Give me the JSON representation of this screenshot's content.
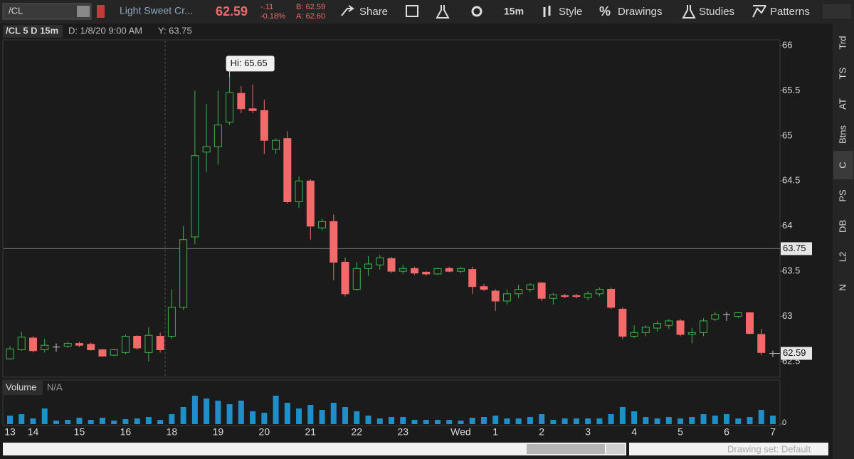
{
  "toolbar": {
    "symbol": "/CL",
    "description": "Light Sweet Cr...",
    "last": "62.59",
    "change": "-.11",
    "change_pct": "-0.18%",
    "bid": "B: 62.59",
    "ask": "A: 62.60",
    "share": "Share",
    "interval": "15m",
    "style": "Style",
    "drawings": "Drawings",
    "studies": "Studies",
    "patterns": "Patterns"
  },
  "chart_data": {
    "type": "candlestick",
    "title": "/CL 5 D 15m",
    "cursor_date": "D: 1/8/20 9:00 AM",
    "cursor_value_label": "Y: 63.75",
    "categories": [
      "13",
      null,
      "14",
      null,
      null,
      null,
      "15",
      null,
      null,
      null,
      "16",
      null,
      null,
      null,
      "18",
      null,
      null,
      null,
      "19",
      null,
      null,
      null,
      "20",
      null,
      null,
      null,
      "21",
      null,
      null,
      null,
      "22",
      null,
      null,
      null,
      "23",
      null,
      null,
      null,
      null,
      "Wed",
      null,
      null,
      "1",
      null,
      null,
      null,
      "2",
      null,
      null,
      null,
      "3",
      null,
      null,
      null,
      "4",
      null,
      null,
      null,
      "5",
      null,
      null,
      null,
      "6",
      null,
      null,
      null,
      "7"
    ],
    "open": [
      62.53,
      62.63,
      62.76,
      62.63,
      62.66,
      62.67,
      62.7,
      62.69,
      62.63,
      62.57,
      62.6,
      62.78,
      62.6,
      62.78,
      62.78,
      63.1,
      63.88,
      64.82,
      64.88,
      65.15,
      65.47,
      65.3,
      65.28,
      64.85,
      64.97,
      64.27,
      64.5,
      63.98,
      64.05,
      63.6,
      63.3,
      63.53,
      63.57,
      63.64,
      63.5,
      63.53,
      63.49,
      63.47,
      63.53,
      63.5,
      63.52,
      63.33,
      63.28,
      63.17,
      63.25,
      63.3,
      63.37,
      63.2,
      63.23,
      63.23,
      63.21,
      63.25,
      63.3,
      63.08,
      62.78,
      62.82,
      62.87,
      62.9,
      62.95,
      62.8,
      62.82,
      62.97,
      63.02,
      63.0,
      63.04,
      62.8,
      62.59
    ],
    "high": [
      62.67,
      62.83,
      62.78,
      62.75,
      62.7,
      62.72,
      62.72,
      62.71,
      62.64,
      62.64,
      62.8,
      62.79,
      62.88,
      62.82,
      63.3,
      64.0,
      65.5,
      65.35,
      65.5,
      65.65,
      65.55,
      65.57,
      65.4,
      64.97,
      65.05,
      64.55,
      64.52,
      64.08,
      64.13,
      63.65,
      63.6,
      63.67,
      63.68,
      63.66,
      63.57,
      63.55,
      63.5,
      63.54,
      63.55,
      63.55,
      63.55,
      63.36,
      63.3,
      63.3,
      63.35,
      63.37,
      63.38,
      63.26,
      63.25,
      63.25,
      63.28,
      63.32,
      63.32,
      63.1,
      62.9,
      62.9,
      62.95,
      62.97,
      62.97,
      62.87,
      62.98,
      63.05,
      63.05,
      63.05,
      63.05,
      62.86,
      62.62
    ],
    "low": [
      62.52,
      62.62,
      62.6,
      62.6,
      62.61,
      62.65,
      62.66,
      62.62,
      62.55,
      62.56,
      62.58,
      62.63,
      62.5,
      62.6,
      62.75,
      63.07,
      63.8,
      64.6,
      64.68,
      65.12,
      65.25,
      65.25,
      64.8,
      64.8,
      64.25,
      64.2,
      63.85,
      63.95,
      63.4,
      63.22,
      63.28,
      63.45,
      63.52,
      63.48,
      63.47,
      63.46,
      63.45,
      63.46,
      63.49,
      63.48,
      63.25,
      63.28,
      63.06,
      63.13,
      63.2,
      63.27,
      63.17,
      63.13,
      63.2,
      63.2,
      63.18,
      63.22,
      63.08,
      62.75,
      62.76,
      62.78,
      62.83,
      62.86,
      62.78,
      62.7,
      62.78,
      62.95,
      62.95,
      62.98,
      62.8,
      62.57,
      62.55
    ],
    "close": [
      62.64,
      62.77,
      62.62,
      62.68,
      62.66,
      62.7,
      62.68,
      62.63,
      62.56,
      62.63,
      62.78,
      62.65,
      62.79,
      62.63,
      63.1,
      63.85,
      64.78,
      64.88,
      65.12,
      65.48,
      65.3,
      65.28,
      64.95,
      64.95,
      64.27,
      64.5,
      64.0,
      64.05,
      63.6,
      63.25,
      63.53,
      63.58,
      63.65,
      63.5,
      63.53,
      63.48,
      63.47,
      63.53,
      63.5,
      63.53,
      63.33,
      63.3,
      63.17,
      63.25,
      63.3,
      63.35,
      63.2,
      63.24,
      63.22,
      63.22,
      63.25,
      63.3,
      63.1,
      62.78,
      62.82,
      62.88,
      62.92,
      62.95,
      62.8,
      62.82,
      62.95,
      63.02,
      63.02,
      63.04,
      62.81,
      62.6,
      62.59
    ],
    "up_color": "#3bb54a",
    "down_color": "#f26a6a",
    "doji_color": "#cccccc",
    "ylim": [
      62.5,
      66
    ],
    "yticks": [
      62.5,
      63,
      63.5,
      64,
      64.5,
      65,
      65.5,
      66
    ],
    "crosshair": 63.75,
    "last_price": 62.59,
    "hi_label": "Hi: 65.65",
    "volume": {
      "title": "Volume",
      "status": "N/A",
      "color": "#1f8fc9",
      "ylim": [
        0,
        40
      ],
      "yticks": [
        0
      ],
      "values": [
        12,
        14,
        8,
        22,
        5,
        6,
        9,
        6,
        9,
        5,
        7,
        8,
        10,
        6,
        14,
        24,
        40,
        36,
        33,
        28,
        33,
        18,
        16,
        40,
        30,
        22,
        27,
        20,
        30,
        24,
        18,
        12,
        8,
        10,
        10,
        6,
        6,
        6,
        6,
        5,
        9,
        10,
        12,
        8,
        8,
        10,
        14,
        6,
        8,
        8,
        8,
        8,
        14,
        24,
        18,
        10,
        8,
        10,
        8,
        10,
        14,
        12,
        14,
        8,
        10,
        20,
        12
      ]
    }
  },
  "sidebar": {
    "tabs": [
      "Trd",
      "TS",
      "AT",
      "Btns",
      "C",
      "PS",
      "DB",
      "L2",
      "N"
    ]
  },
  "footer": {
    "drawing_set": "Drawing set: Default"
  }
}
